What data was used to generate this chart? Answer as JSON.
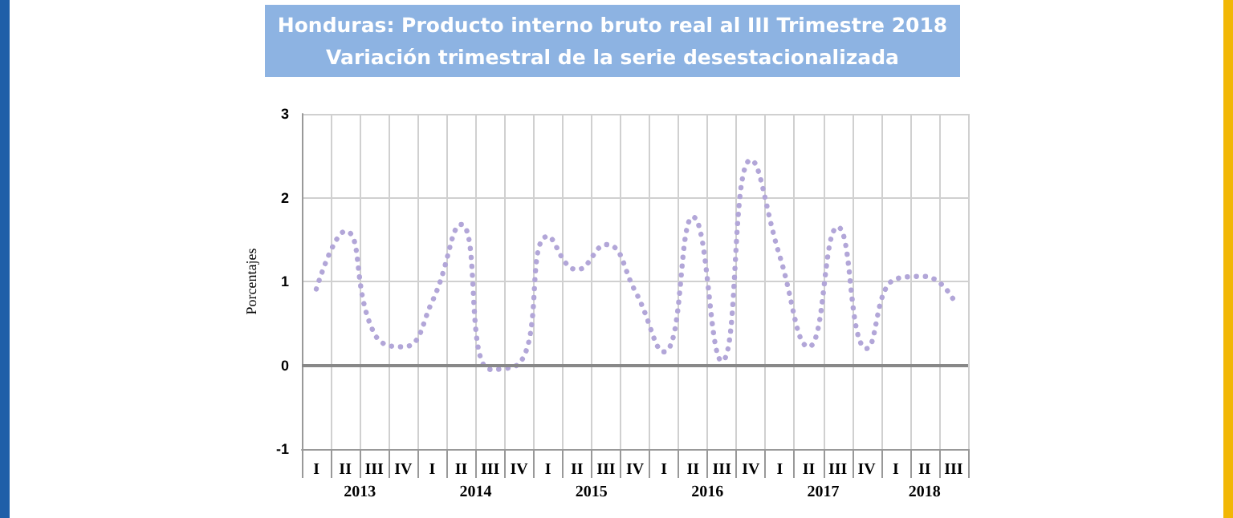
{
  "chart_data": {
    "type": "line",
    "title": "Honduras: Producto interno bruto real al III Trimestre 2018",
    "subtitle": "Variación trimestral de la serie desestacionalizada",
    "ylabel": "Porcentajes",
    "categories": [
      "I",
      "II",
      "III",
      "IV",
      "I",
      "II",
      "III",
      "IV",
      "I",
      "II",
      "III",
      "IV",
      "I",
      "II",
      "III",
      "IV",
      "I",
      "II",
      "III",
      "IV",
      "I",
      "II",
      "III"
    ],
    "annotations": [
      "2013",
      "2014",
      "2015",
      "2016",
      "2017",
      "2018"
    ],
    "series": [
      {
        "color": "#b2a6d8",
        "values": [
          0.91,
          1.6,
          0.38,
          0.22,
          0.76,
          1.68,
          -0.05,
          0.02,
          1.54,
          1.14,
          1.44,
          0.89,
          0.16,
          1.77,
          0.05,
          2.45,
          1.3,
          0.22,
          1.65,
          0.2,
          1.03,
          1.06,
          0.78
        ]
      }
    ],
    "ylim": [
      -1,
      3
    ],
    "yticks": [
      -1,
      0,
      1,
      2,
      3
    ],
    "grid": true,
    "marker": "none",
    "line_style": "dotted"
  }
}
